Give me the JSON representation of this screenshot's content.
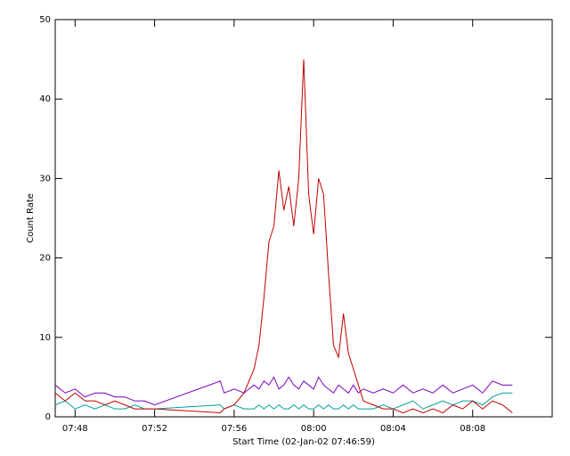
{
  "chart_data": {
    "type": "line",
    "y_label": "Count Rate",
    "x_label": "Start Time (02-Jan-02 07:46:59)",
    "x": [
      0,
      0.5,
      1,
      1.5,
      2,
      2.5,
      3,
      3.5,
      4,
      4.5,
      5,
      8.3,
      8.5,
      9,
      9.5,
      10,
      10.25,
      10.5,
      10.75,
      11,
      11.25,
      11.5,
      11.75,
      12,
      12.25,
      12.5,
      12.75,
      13,
      13.25,
      13.5,
      13.75,
      14,
      14.25,
      14.5,
      14.75,
      15,
      15.25,
      15.5,
      16,
      16.5,
      17,
      17.5,
      18,
      18.5,
      19,
      19.5,
      20,
      20.5,
      21,
      21.5,
      22,
      22.5,
      23
    ],
    "series": [
      {
        "color": "#7f00bf",
        "values": [
          4,
          3,
          3.5,
          2.5,
          3,
          3,
          2.5,
          2.5,
          2,
          2,
          1.5,
          4.5,
          3,
          3.5,
          3,
          4,
          3.5,
          4.5,
          4,
          5,
          3.5,
          4,
          5,
          4,
          3.5,
          4.5,
          4,
          3.5,
          5,
          4,
          3.5,
          3,
          4,
          3.5,
          3,
          4,
          3,
          3.5,
          3,
          3.5,
          3,
          4,
          3,
          3.5,
          3,
          4,
          3,
          3.5,
          4,
          3,
          4.5,
          4,
          4
        ]
      },
      {
        "color": "#009f9f",
        "values": [
          1.5,
          2,
          1,
          1.5,
          1,
          1.5,
          1,
          1,
          1.5,
          1,
          1,
          1.5,
          1,
          1.5,
          1,
          1,
          1.5,
          1,
          1.5,
          1,
          1.5,
          1,
          1,
          1.5,
          1,
          1.5,
          1,
          1,
          1.5,
          1,
          1.5,
          1,
          1,
          1.5,
          1,
          1.5,
          1,
          1,
          1,
          1.5,
          1,
          1.5,
          2,
          1,
          1.5,
          2,
          1.5,
          2,
          2,
          1.5,
          2.5,
          3,
          3
        ]
      },
      {
        "color": "#c00000",
        "values": [
          3,
          2,
          3,
          2,
          2,
          1.5,
          2,
          1.5,
          1,
          1,
          1,
          0.5,
          1,
          1.5,
          3,
          6,
          9,
          15,
          22,
          24,
          31,
          26,
          29,
          24,
          30,
          45,
          28,
          23,
          30,
          28,
          18,
          9,
          7.5,
          13,
          8,
          6,
          4,
          2,
          1.5,
          1,
          1,
          0.5,
          1,
          0.5,
          1,
          0.5,
          1.5,
          1,
          2,
          1,
          2,
          1.5,
          0.5
        ]
      }
    ],
    "xlim": [
      0,
      25
    ],
    "xticks": [
      {
        "value": 1,
        "label": "07:48"
      },
      {
        "value": 5,
        "label": "07:52"
      },
      {
        "value": 9,
        "label": "07:56"
      },
      {
        "value": 13,
        "label": "08:00"
      },
      {
        "value": 17,
        "label": "08:04"
      },
      {
        "value": 21,
        "label": "08:08"
      }
    ],
    "ylim": [
      0,
      50
    ],
    "yticks": [
      0,
      10,
      20,
      30,
      40,
      50
    ]
  }
}
